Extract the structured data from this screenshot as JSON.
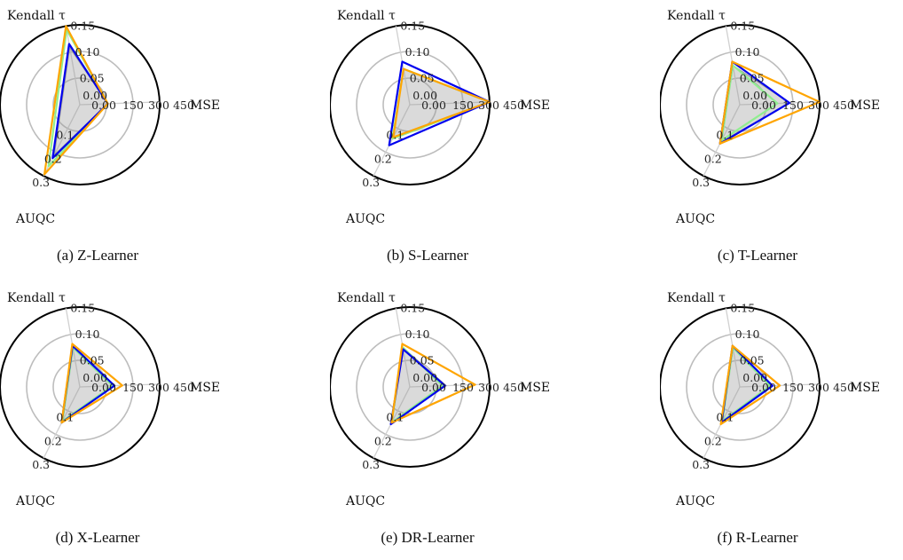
{
  "chart_data": [
    {
      "type": "radar",
      "caption": "(a) Z-Learner",
      "axes": [
        "MSE",
        "Kendall τ",
        "AUQC"
      ],
      "axis_ticks": {
        "MSE": [
          "0.00",
          "150",
          "300",
          "450"
        ],
        "Kendall τ": [
          "0.00",
          "0.05",
          "0.10",
          "0.15"
        ],
        "AUQC": [
          "0.1",
          "0.2",
          "0.3"
        ]
      },
      "axis_max": {
        "MSE": 450,
        "Kendall τ": 0.15,
        "AUQC": 0.3
      },
      "series": [
        {
          "color": "#9a9a9a",
          "values": {
            "MSE": 20,
            "Kendall τ": 0.09,
            "AUQC": 0.17
          }
        },
        {
          "color": "#90ee90",
          "values": {
            "MSE": 20,
            "Kendall τ": 0.14,
            "AUQC": 0.24
          }
        },
        {
          "color": "#0000ee",
          "values": {
            "MSE": 20,
            "Kendall τ": 0.1,
            "AUQC": 0.19
          }
        },
        {
          "color": "#ffa500",
          "values": {
            "MSE": 20,
            "Kendall τ": 0.15,
            "AUQC": 0.29
          }
        }
      ]
    },
    {
      "type": "radar",
      "caption": "(b) S-Learner",
      "axes": [
        "MSE",
        "Kendall τ",
        "AUQC"
      ],
      "axis_ticks": {
        "MSE": [
          "0.00",
          "150",
          "300",
          "450"
        ],
        "Kendall τ": [
          "0.00",
          "0.05",
          "0.10",
          "0.15"
        ],
        "AUQC": [
          "0.1",
          "0.2",
          "0.3"
        ]
      },
      "axis_max": {
        "MSE": 450,
        "Kendall τ": 0.15,
        "AUQC": 0.3
      },
      "series": [
        {
          "color": "#9a9a9a",
          "values": {
            "MSE": 450,
            "Kendall τ": 0.03,
            "AUQC": 0.07
          }
        },
        {
          "color": "#90ee90",
          "values": {
            "MSE": 450,
            "Kendall τ": 0.03,
            "AUQC": 0.07
          }
        },
        {
          "color": "#0000ee",
          "values": {
            "MSE": 450,
            "Kendall τ": 0.05,
            "AUQC": 0.11
          }
        },
        {
          "color": "#ffa500",
          "values": {
            "MSE": 450,
            "Kendall τ": 0.03,
            "AUQC": 0.06
          }
        }
      ]
    },
    {
      "type": "radar",
      "caption": "(c) T-Learner",
      "axes": [
        "MSE",
        "Kendall τ",
        "AUQC"
      ],
      "axis_ticks": {
        "MSE": [
          "0.00",
          "150",
          "300",
          "450"
        ],
        "Kendall τ": [
          "0.00",
          "0.05",
          "0.10",
          "0.15"
        ],
        "AUQC": [
          "0.1",
          "0.2",
          "0.3"
        ]
      },
      "axis_max": {
        "MSE": 450,
        "Kendall τ": 0.15,
        "AUQC": 0.3
      },
      "series": [
        {
          "color": "#9a9a9a",
          "values": {
            "MSE": 200,
            "Kendall τ": 0.04,
            "AUQC": 0.09
          }
        },
        {
          "color": "#90ee90",
          "values": {
            "MSE": 100,
            "Kendall τ": 0.04,
            "AUQC": 0.08
          }
        },
        {
          "color": "#0000ee",
          "values": {
            "MSE": 200,
            "Kendall τ": 0.05,
            "AUQC": 0.1
          }
        },
        {
          "color": "#ffa500",
          "values": {
            "MSE": 450,
            "Kendall τ": 0.05,
            "AUQC": 0.1
          }
        }
      ]
    },
    {
      "type": "radar",
      "caption": "(d) X-Learner",
      "axes": [
        "MSE",
        "Kendall τ",
        "AUQC"
      ],
      "axis_ticks": {
        "MSE": [
          "0.00",
          "150",
          "300",
          "450"
        ],
        "Kendall τ": [
          "0.00",
          "0.05",
          "0.10",
          "0.15"
        ],
        "AUQC": [
          "0.1",
          "0.2",
          "0.3"
        ]
      },
      "axis_max": {
        "MSE": 450,
        "Kendall τ": 0.15,
        "AUQC": 0.3
      },
      "series": [
        {
          "color": "#9a9a9a",
          "values": {
            "MSE": 60,
            "Kendall τ": 0.04,
            "AUQC": 0.08
          }
        },
        {
          "color": "#90ee90",
          "values": {
            "MSE": 60,
            "Kendall τ": 0.04,
            "AUQC": 0.07
          }
        },
        {
          "color": "#0000ee",
          "values": {
            "MSE": 75,
            "Kendall τ": 0.045,
            "AUQC": 0.08
          }
        },
        {
          "color": "#ffa500",
          "values": {
            "MSE": 140,
            "Kendall τ": 0.05,
            "AUQC": 0.08
          }
        }
      ]
    },
    {
      "type": "radar",
      "caption": "(e) DR-Learner",
      "axes": [
        "MSE",
        "Kendall τ",
        "AUQC"
      ],
      "axis_ticks": {
        "MSE": [
          "0.00",
          "150",
          "300",
          "450"
        ],
        "Kendall τ": [
          "0.00",
          "0.05",
          "0.10",
          "0.15"
        ],
        "AUQC": [
          "0.1",
          "0.2",
          "0.3"
        ]
      },
      "axis_max": {
        "MSE": 450,
        "Kendall τ": 0.15,
        "AUQC": 0.3
      },
      "series": [
        {
          "color": "#9a9a9a",
          "values": {
            "MSE": 90,
            "Kendall τ": 0.04,
            "AUQC": 0.08
          }
        },
        {
          "color": "#90ee90",
          "values": {
            "MSE": 60,
            "Kendall τ": 0.04,
            "AUQC": 0.08
          }
        },
        {
          "color": "#0000ee",
          "values": {
            "MSE": 80,
            "Kendall τ": 0.035,
            "AUQC": 0.09
          }
        },
        {
          "color": "#ffa500",
          "values": {
            "MSE": 330,
            "Kendall τ": 0.05,
            "AUQC": 0.08
          }
        }
      ]
    },
    {
      "type": "radar",
      "caption": "(f) R-Learner",
      "axes": [
        "MSE",
        "Kendall τ",
        "AUQC"
      ],
      "axis_ticks": {
        "MSE": [
          "0.00",
          "150",
          "300",
          "450"
        ],
        "Kendall τ": [
          "0.00",
          "0.05",
          "0.10",
          "0.15"
        ],
        "AUQC": [
          "0.1",
          "0.2",
          "0.3"
        ]
      },
      "axis_max": {
        "MSE": 450,
        "Kendall τ": 0.15,
        "AUQC": 0.3
      },
      "series": [
        {
          "color": "#9a9a9a",
          "values": {
            "MSE": 40,
            "Kendall τ": 0.04,
            "AUQC": 0.07
          }
        },
        {
          "color": "#90ee90",
          "values": {
            "MSE": 40,
            "Kendall τ": 0.04,
            "AUQC": 0.07
          }
        },
        {
          "color": "#0000ee",
          "values": {
            "MSE": 60,
            "Kendall τ": 0.045,
            "AUQC": 0.08
          }
        },
        {
          "color": "#ffa500",
          "values": {
            "MSE": 120,
            "Kendall τ": 0.045,
            "AUQC": 0.09
          }
        }
      ]
    }
  ]
}
